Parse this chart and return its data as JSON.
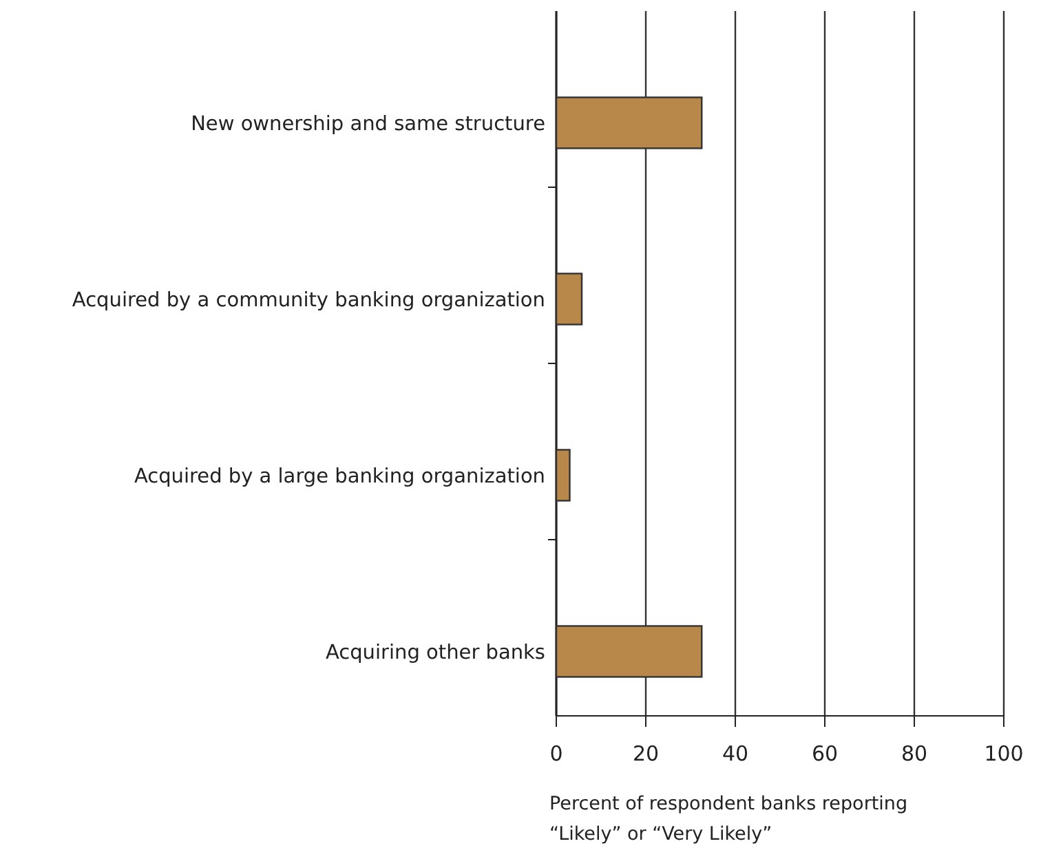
{
  "chart_data": {
    "type": "bar",
    "orientation": "horizontal",
    "categories": [
      "New ownership and same structure",
      "Acquired by a community banking organization",
      "Acquired by a large banking organization",
      "Acquiring other banks"
    ],
    "values": [
      32.5,
      5.7,
      3.0,
      32.5
    ],
    "color": "#b8874a",
    "xlim": [
      0,
      100
    ],
    "xticks": [
      0,
      20,
      40,
      60,
      80,
      100
    ],
    "grid": "x",
    "xlabel": "Percent of respondent banks reporting “Likely” or “Very Likely”"
  }
}
